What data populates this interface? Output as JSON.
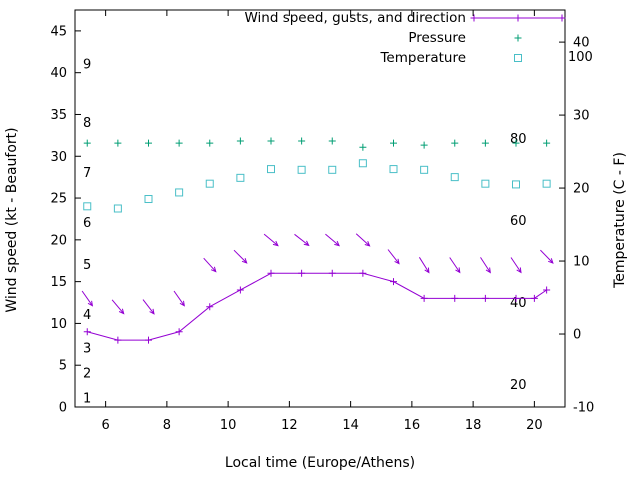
{
  "chart_data": {
    "type": "line",
    "legend": [
      {
        "label": "Wind speed, gusts, and direction",
        "marker": "line-plus",
        "color": "#9400d3"
      },
      {
        "label": "Pressure",
        "marker": "plus",
        "color": "#009e73"
      },
      {
        "label": "Temperature",
        "marker": "open-square",
        "color": "#49bfc7"
      }
    ],
    "axes": {
      "x": {
        "label": "Local time (Europe/Athens)",
        "range": [
          5,
          21
        ],
        "ticks": [
          6,
          8,
          10,
          12,
          14,
          16,
          18,
          20
        ]
      },
      "y_left": {
        "label": "Wind speed (kt - Beaufort)",
        "range": [
          0,
          47.5
        ],
        "ticks": [
          0,
          5,
          10,
          15,
          20,
          25,
          30,
          35,
          40,
          45
        ],
        "beaufort_labels": [
          {
            "label": "1",
            "kt": 1
          },
          {
            "label": "2",
            "kt": 4
          },
          {
            "label": "3",
            "kt": 7
          },
          {
            "label": "4",
            "kt": 11
          },
          {
            "label": "5",
            "kt": 17
          },
          {
            "label": "6",
            "kt": 22
          },
          {
            "label": "7",
            "kt": 28
          },
          {
            "label": "8",
            "kt": 34
          },
          {
            "label": "9",
            "kt": 41
          }
        ]
      },
      "y_right": {
        "label": "Temperature (C - F)",
        "range": [
          -10,
          44.4
        ],
        "ticks": [
          -10,
          0,
          10,
          20,
          30,
          40
        ]
      },
      "pressure_scale": {
        "ticks": [
          20,
          40,
          60,
          80,
          100
        ]
      }
    },
    "series": {
      "wind_speed": {
        "name": "Wind speed",
        "color": "#9400d3",
        "x": [
          5.4,
          6.4,
          7.4,
          8.4,
          9.4,
          10.4,
          11.4,
          12.4,
          13.4,
          14.4,
          15.4,
          16.4,
          17.4,
          18.4,
          19.4,
          20.0,
          20.4
        ],
        "values_kt": [
          9,
          8,
          8,
          9,
          12,
          14,
          16,
          16,
          16,
          16,
          15,
          13,
          13,
          13,
          13,
          13,
          14
        ]
      },
      "wind_gusts": {
        "name": "Wind gusts and direction",
        "color": "#9400d3",
        "x": [
          5.4,
          6.4,
          7.4,
          8.4,
          9.4,
          10.4,
          11.4,
          12.4,
          13.4,
          14.4,
          15.4,
          16.4,
          17.4,
          18.4,
          19.4,
          20.4
        ],
        "values_kt": [
          13,
          12,
          12,
          13,
          17,
          18,
          20,
          20,
          20,
          20,
          18,
          17,
          17,
          17,
          17,
          18
        ],
        "direction_deg_screen": [
          55,
          50,
          52,
          55,
          48,
          45,
          40,
          38,
          40,
          42,
          52,
          58,
          56,
          57,
          56,
          46
        ]
      },
      "pressure": {
        "name": "Pressure",
        "color": "#009e73",
        "x": [
          5.4,
          6.4,
          7.4,
          8.4,
          9.4,
          10.4,
          11.4,
          12.4,
          13.4,
          14.4,
          15.4,
          16.4,
          17.4,
          18.4,
          19.4,
          20.4
        ],
        "values": [
          79,
          79,
          79,
          79,
          79,
          79.5,
          79.5,
          79.5,
          79.5,
          78,
          79,
          78.5,
          79,
          79,
          79,
          79
        ]
      },
      "temperature": {
        "name": "Temperature",
        "color": "#49bfc7",
        "x": [
          5.4,
          6.4,
          7.4,
          8.4,
          9.4,
          10.4,
          11.4,
          12.4,
          13.4,
          14.4,
          15.4,
          16.4,
          17.4,
          18.4,
          19.4,
          20.4
        ],
        "values_c": [
          17.5,
          17.2,
          18.5,
          19.4,
          20.6,
          21.4,
          22.6,
          22.5,
          22.5,
          23.4,
          22.6,
          22.5,
          21.5,
          20.6,
          20.5,
          20.6
        ]
      }
    }
  }
}
